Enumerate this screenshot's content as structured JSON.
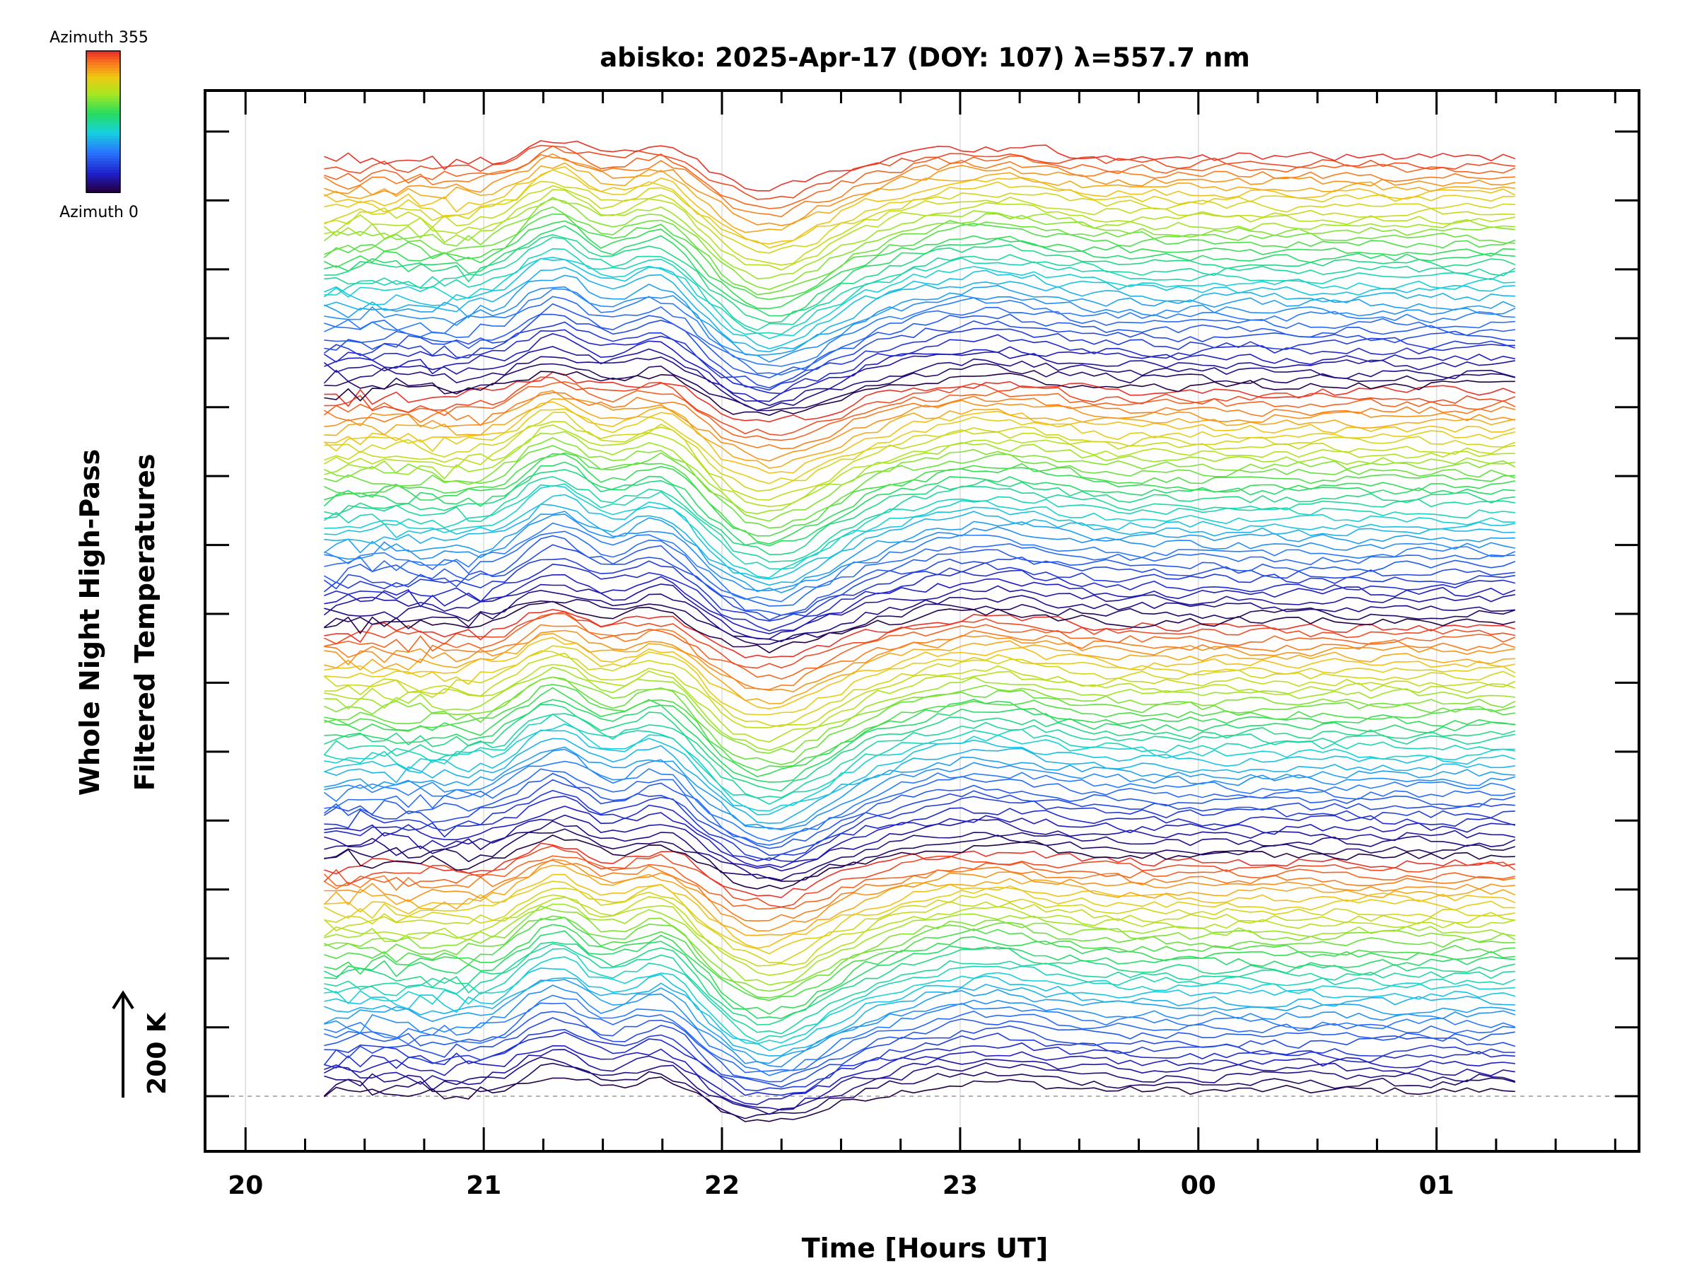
{
  "chart_data": {
    "type": "line",
    "title": "abisko: 2025-Apr-17 (DOY: 107) λ=557.7 nm",
    "xlabel": "Time [Hours UT]",
    "ylabel_line1": "Whole Night High-Pass",
    "ylabel_line2": "Filtered Temperatures",
    "x_tick_labels": [
      "20",
      "21",
      "22",
      "23",
      "00",
      "01"
    ],
    "x_range_hours": [
      19.83,
      25.85
    ],
    "data_range_hours": [
      20.33,
      25.33
    ],
    "scale_bar_label": "200 K",
    "colorbar": {
      "top_label": "Azimuth 355",
      "bottom_label": "Azimuth 0",
      "colormap": "rainbow"
    },
    "series_count": 144,
    "azimuth_step_deg": 10,
    "azimuth_cycles": 4,
    "features": [
      {
        "hour": 20.55,
        "peak": 0.05
      },
      {
        "hour": 21.3,
        "peak": 0.6
      },
      {
        "hour": 21.75,
        "peak": 0.5
      },
      {
        "hour": 22.2,
        "trough": -0.7
      },
      {
        "hour": 23.1,
        "peak": 0.25
      }
    ],
    "baseline_dashed": true,
    "grid": true
  }
}
